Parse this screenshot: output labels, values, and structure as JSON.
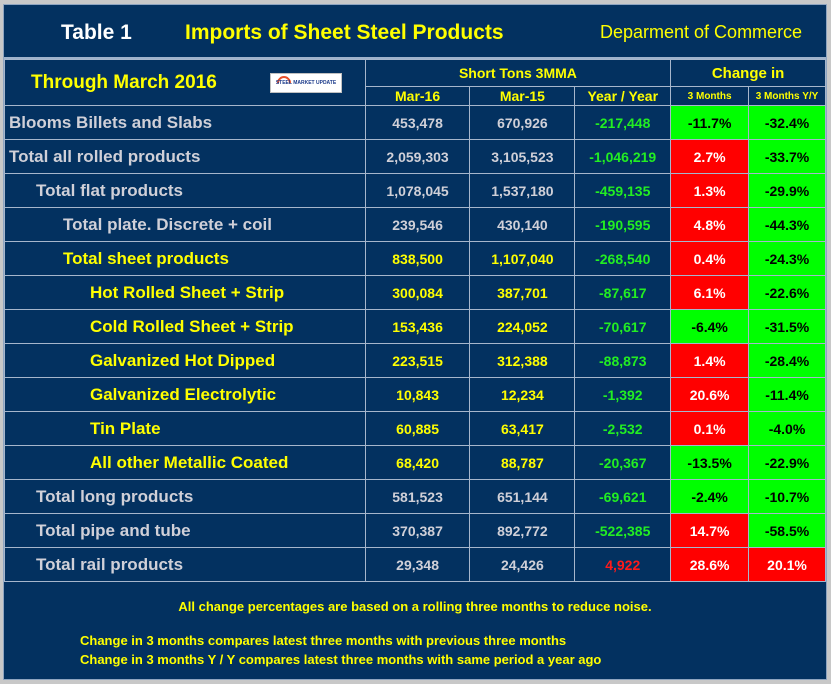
{
  "header": {
    "table_label": "Table 1",
    "title": "Imports of Sheet Steel Products",
    "source": "Deparment of Commerce",
    "period": "Through March 2016",
    "logo_text": "STEEL MARKET UPDATE",
    "group_short_tons": "Short Tons 3MMA",
    "group_change": "Change in",
    "columns": [
      "Mar-16",
      "Mar-15",
      "Year / Year",
      "3 Months",
      "3 Months Y/Y"
    ]
  },
  "colors": {
    "background": "#033160",
    "positive_change_bg": "#ff0000",
    "negative_change_bg": "#00ff00",
    "header_text": "#ffff00"
  },
  "rows": [
    {
      "label": "Blooms Billets and Slabs",
      "level": 0,
      "text_color": "gray",
      "mar16": "453,478",
      "mar15": "670,926",
      "yoy": "-217,448",
      "yoy_sign": "neg",
      "m3": "-11.7%",
      "m3_sign": "neg",
      "m3yy": "-32.4%",
      "m3yy_sign": "neg"
    },
    {
      "label": "Total all rolled products",
      "level": 0,
      "text_color": "gray",
      "mar16": "2,059,303",
      "mar15": "3,105,523",
      "yoy": "-1,046,219",
      "yoy_sign": "neg",
      "m3": "2.7%",
      "m3_sign": "pos",
      "m3yy": "-33.7%",
      "m3yy_sign": "neg"
    },
    {
      "label": "Total flat products",
      "level": 1,
      "text_color": "gray",
      "mar16": "1,078,045",
      "mar15": "1,537,180",
      "yoy": "-459,135",
      "yoy_sign": "neg",
      "m3": "1.3%",
      "m3_sign": "pos",
      "m3yy": "-29.9%",
      "m3yy_sign": "neg"
    },
    {
      "label": "Total plate. Discrete + coil",
      "level": 2,
      "text_color": "gray",
      "mar16": "239,546",
      "mar15": "430,140",
      "yoy": "-190,595",
      "yoy_sign": "neg",
      "m3": "4.8%",
      "m3_sign": "pos",
      "m3yy": "-44.3%",
      "m3yy_sign": "neg"
    },
    {
      "label": "Total sheet products",
      "level": 2,
      "text_color": "yellow",
      "mar16": "838,500",
      "mar15": "1,107,040",
      "yoy": "-268,540",
      "yoy_sign": "neg",
      "m3": "0.4%",
      "m3_sign": "pos",
      "m3yy": "-24.3%",
      "m3yy_sign": "neg"
    },
    {
      "label": "Hot Rolled Sheet + Strip",
      "level": 3,
      "text_color": "yellow",
      "mar16": "300,084",
      "mar15": "387,701",
      "yoy": "-87,617",
      "yoy_sign": "neg",
      "m3": "6.1%",
      "m3_sign": "pos",
      "m3yy": "-22.6%",
      "m3yy_sign": "neg"
    },
    {
      "label": "Cold Rolled Sheet + Strip",
      "level": 3,
      "text_color": "yellow",
      "mar16": "153,436",
      "mar15": "224,052",
      "yoy": "-70,617",
      "yoy_sign": "neg",
      "m3": "-6.4%",
      "m3_sign": "neg",
      "m3yy": "-31.5%",
      "m3yy_sign": "neg"
    },
    {
      "label": "Galvanized Hot Dipped",
      "level": 3,
      "text_color": "yellow",
      "mar16": "223,515",
      "mar15": "312,388",
      "yoy": "-88,873",
      "yoy_sign": "neg",
      "m3": "1.4%",
      "m3_sign": "pos",
      "m3yy": "-28.4%",
      "m3yy_sign": "neg"
    },
    {
      "label": "Galvanized Electrolytic",
      "level": 3,
      "text_color": "yellow",
      "mar16": "10,843",
      "mar15": "12,234",
      "yoy": "-1,392",
      "yoy_sign": "neg",
      "m3": "20.6%",
      "m3_sign": "pos",
      "m3yy": "-11.4%",
      "m3yy_sign": "neg"
    },
    {
      "label": "Tin Plate",
      "level": 3,
      "text_color": "yellow",
      "mar16": "60,885",
      "mar15": "63,417",
      "yoy": "-2,532",
      "yoy_sign": "neg",
      "m3": "0.1%",
      "m3_sign": "pos",
      "m3yy": "-4.0%",
      "m3yy_sign": "neg"
    },
    {
      "label": "All other Metallic Coated",
      "level": 3,
      "text_color": "yellow",
      "mar16": "68,420",
      "mar15": "88,787",
      "yoy": "-20,367",
      "yoy_sign": "neg",
      "m3": "-13.5%",
      "m3_sign": "neg",
      "m3yy": "-22.9%",
      "m3yy_sign": "neg"
    },
    {
      "label": "Total long products",
      "level": 1,
      "text_color": "gray",
      "mar16": "581,523",
      "mar15": "651,144",
      "yoy": "-69,621",
      "yoy_sign": "neg",
      "m3": "-2.4%",
      "m3_sign": "neg",
      "m3yy": "-10.7%",
      "m3yy_sign": "neg"
    },
    {
      "label": "Total pipe and tube",
      "level": 1,
      "text_color": "gray",
      "mar16": "370,387",
      "mar15": "892,772",
      "yoy": "-522,385",
      "yoy_sign": "neg",
      "m3": "14.7%",
      "m3_sign": "pos",
      "m3yy": "-58.5%",
      "m3yy_sign": "neg"
    },
    {
      "label": "Total rail products",
      "level": 1,
      "text_color": "gray",
      "mar16": "29,348",
      "mar15": "24,426",
      "yoy": "4,922",
      "yoy_sign": "pos",
      "m3": "28.6%",
      "m3_sign": "pos",
      "m3yy": "20.1%",
      "m3yy_sign": "pos"
    }
  ],
  "footer": {
    "note": "All change percentages are based on a rolling three months to reduce noise.",
    "line1": "Change in 3 months compares latest three months with previous three months",
    "line2": "Change in 3 months  Y / Y compares latest three months with same period a year ago"
  }
}
